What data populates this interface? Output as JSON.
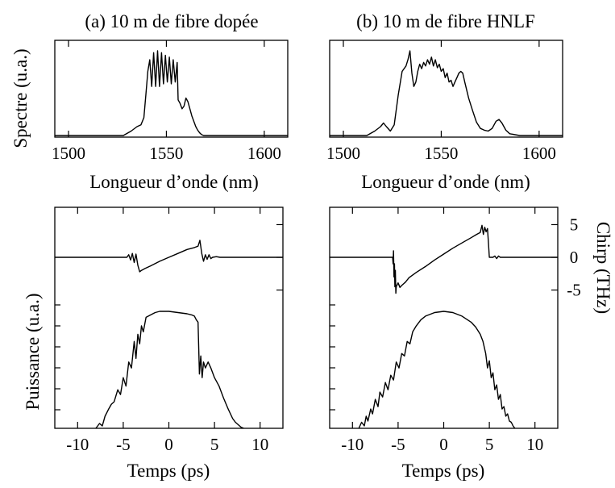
{
  "chart_data": [
    {
      "id": "spec_a",
      "type": "line",
      "title": "(a) 10 m de fibre dopée",
      "xlabel": "Longueur d’onde (nm)",
      "ylabel": "Spectre (u.a.)",
      "xlim": [
        1493,
        1612
      ],
      "ylim": [
        0,
        1.05
      ],
      "xticks": [
        1500,
        1550,
        1600
      ],
      "x": [
        1493,
        1528,
        1532,
        1535,
        1537,
        1538.5,
        1539.5,
        1540.5,
        1541.5,
        1542.5,
        1543.5,
        1544.5,
        1545.5,
        1546.5,
        1547.5,
        1548.5,
        1549.5,
        1550.5,
        1551.5,
        1552.5,
        1553.5,
        1554.5,
        1555.5,
        1556,
        1557,
        1558,
        1559,
        1560,
        1561,
        1562,
        1563,
        1564,
        1565,
        1566,
        1567,
        1568,
        1569,
        1612
      ],
      "y": [
        0,
        0,
        0.05,
        0.1,
        0.12,
        0.2,
        0.45,
        0.72,
        0.85,
        0.55,
        0.93,
        0.55,
        0.95,
        0.55,
        0.93,
        0.58,
        0.9,
        0.6,
        0.88,
        0.58,
        0.85,
        0.6,
        0.82,
        0.4,
        0.36,
        0.3,
        0.33,
        0.42,
        0.38,
        0.3,
        0.22,
        0.16,
        0.1,
        0.06,
        0.03,
        0.01,
        0,
        0
      ]
    },
    {
      "id": "spec_b",
      "type": "line",
      "title": "(b) 10 m de fibre HNLF",
      "xlabel": "Longueur d’onde (nm)",
      "ylabel": "",
      "xlim": [
        1493,
        1612
      ],
      "ylim": [
        0,
        1.05
      ],
      "xticks": [
        1500,
        1550,
        1600
      ],
      "x": [
        1493,
        1512,
        1516,
        1519,
        1520.5,
        1522,
        1524,
        1526,
        1528,
        1530,
        1532,
        1533,
        1534,
        1535,
        1536,
        1537,
        1538,
        1539,
        1540,
        1541,
        1542,
        1543,
        1544,
        1545,
        1546,
        1547,
        1548,
        1549,
        1550,
        1551,
        1552,
        1553,
        1554,
        1555,
        1556,
        1557,
        1558,
        1559,
        1560,
        1561,
        1562,
        1564,
        1566,
        1568,
        1570,
        1572,
        1574,
        1576,
        1578,
        1579.5,
        1581,
        1583,
        1585,
        1590,
        1612
      ],
      "y": [
        0,
        0,
        0.05,
        0.1,
        0.14,
        0.1,
        0.05,
        0.12,
        0.45,
        0.72,
        0.78,
        0.85,
        0.95,
        0.7,
        0.55,
        0.6,
        0.72,
        0.8,
        0.75,
        0.82,
        0.78,
        0.85,
        0.8,
        0.88,
        0.78,
        0.85,
        0.76,
        0.8,
        0.72,
        0.75,
        0.65,
        0.7,
        0.6,
        0.62,
        0.55,
        0.6,
        0.65,
        0.7,
        0.72,
        0.7,
        0.6,
        0.42,
        0.28,
        0.15,
        0.08,
        0.06,
        0.05,
        0.08,
        0.16,
        0.18,
        0.14,
        0.06,
        0.02,
        0,
        0
      ]
    },
    {
      "id": "time_a",
      "type": "line",
      "xlabel": "Temps (ps)",
      "ylabel": "Puissance (u.a.)",
      "xlim": [
        -12.5,
        12.5
      ],
      "xticks": [
        -10,
        -5,
        0,
        5,
        10
      ],
      "series": [
        {
          "role": "chirp",
          "ylim": [
            -10.6,
            7.4
          ],
          "x": [
            -12.5,
            -4.6,
            -4.4,
            -4.2,
            -4.0,
            -3.8,
            -3.6,
            -3.4,
            -3.2,
            -3.0,
            -2.6,
            -2.0,
            -1.0,
            0,
            1.0,
            2.0,
            2.8,
            3.2,
            3.4,
            3.6,
            3.8,
            4.0,
            4.2,
            4.4,
            4.6,
            4.8,
            5.2,
            5.6,
            12.5
          ],
          "y": [
            0,
            0,
            0.4,
            -0.4,
            0.6,
            -0.8,
            0.5,
            -1.2,
            -2.2,
            -2.0,
            -1.7,
            -1.3,
            -0.6,
            0.0,
            0.6,
            1.2,
            1.5,
            1.7,
            2.6,
            0.6,
            -0.6,
            0.4,
            -0.3,
            0.4,
            -0.2,
            0,
            0.1,
            0,
            0
          ]
        },
        {
          "role": "power",
          "ylim": [
            0,
            1.05
          ],
          "x": [
            -8.0,
            -7.6,
            -7.3,
            -7.0,
            -6.6,
            -6.3,
            -6.0,
            -5.6,
            -5.3,
            -5.0,
            -4.7,
            -4.4,
            -4.1,
            -3.8,
            -3.6,
            -3.4,
            -3.2,
            -3.0,
            -2.8,
            -2.5,
            -2.0,
            -1.5,
            -1.0,
            0,
            1.0,
            2.0,
            2.5,
            2.8,
            3.0,
            3.2,
            3.35,
            3.5,
            3.65,
            3.8,
            4.0,
            4.3,
            4.6,
            5.0,
            5.5,
            6.0,
            6.5,
            7.0,
            7.3,
            7.6,
            7.9,
            8.2
          ],
          "y": [
            0.0,
            0.04,
            0.02,
            0.1,
            0.16,
            0.2,
            0.22,
            0.32,
            0.28,
            0.42,
            0.35,
            0.55,
            0.5,
            0.72,
            0.58,
            0.78,
            0.7,
            0.85,
            0.8,
            0.92,
            0.94,
            0.96,
            0.97,
            0.97,
            0.96,
            0.95,
            0.94,
            0.93,
            0.9,
            0.88,
            0.45,
            0.6,
            0.42,
            0.55,
            0.5,
            0.55,
            0.5,
            0.42,
            0.35,
            0.25,
            0.16,
            0.08,
            0.05,
            0.03,
            0.01,
            0.0
          ]
        }
      ]
    },
    {
      "id": "time_b",
      "type": "line",
      "xlabel": "Temps (ps)",
      "ylabel": "Chirp (THz)",
      "xlim": [
        -12.5,
        12.5
      ],
      "xticks": [
        -10,
        -5,
        0,
        5,
        10
      ],
      "yticks": [
        5,
        0,
        -5
      ],
      "series": [
        {
          "role": "chirp",
          "ylim": [
            -10.6,
            7.4
          ],
          "x": [
            -12.5,
            -5.6,
            -5.55,
            -5.5,
            -5.45,
            -5.4,
            -5.35,
            -5.3,
            -5.25,
            -5.2,
            -5.0,
            -4.8,
            -4.6,
            -4.2,
            -3.8,
            -3.0,
            -2.0,
            -1.0,
            0.0,
            1.0,
            2.0,
            3.0,
            3.6,
            4.0,
            4.2,
            4.35,
            4.5,
            4.65,
            4.8,
            4.9,
            5.0,
            5.4,
            5.6,
            5.8,
            6.0,
            6.2,
            12.5
          ],
          "y": [
            0,
            0,
            -1.0,
            1.0,
            -3.0,
            -1.0,
            -4.5,
            -2.0,
            -5.5,
            -4.5,
            -3.9,
            -4.6,
            -4.3,
            -3.8,
            -3.1,
            -2.3,
            -1.4,
            -0.4,
            0.5,
            1.4,
            2.2,
            3.0,
            3.5,
            3.8,
            4.9,
            3.5,
            4.6,
            3.9,
            4.4,
            2.2,
            0.0,
            0.0,
            0.2,
            -0.2,
            0.2,
            0,
            0
          ]
        },
        {
          "role": "power",
          "ylim": [
            0,
            1.05
          ],
          "x": [
            -9.3,
            -9.0,
            -8.7,
            -8.5,
            -8.3,
            -8.0,
            -7.8,
            -7.5,
            -7.2,
            -7.0,
            -6.7,
            -6.4,
            -6.1,
            -5.8,
            -5.5,
            -5.2,
            -4.9,
            -4.6,
            -4.3,
            -4.0,
            -3.7,
            -3.4,
            -3.0,
            -2.5,
            -2.0,
            -1.0,
            0.0,
            1.0,
            2.0,
            3.0,
            3.5,
            4.0,
            4.3,
            4.6,
            4.8,
            5.0,
            5.2,
            5.4,
            5.6,
            5.8,
            6.0,
            6.2,
            6.4,
            6.6,
            6.8,
            7.0,
            7.2,
            7.4,
            7.6,
            7.8
          ],
          "y": [
            0.0,
            0.05,
            0.02,
            0.1,
            0.06,
            0.16,
            0.12,
            0.24,
            0.18,
            0.3,
            0.26,
            0.38,
            0.32,
            0.44,
            0.4,
            0.55,
            0.5,
            0.62,
            0.6,
            0.72,
            0.7,
            0.8,
            0.85,
            0.9,
            0.93,
            0.96,
            0.97,
            0.96,
            0.93,
            0.88,
            0.84,
            0.78,
            0.72,
            0.62,
            0.5,
            0.56,
            0.42,
            0.46,
            0.32,
            0.36,
            0.24,
            0.28,
            0.16,
            0.18,
            0.1,
            0.12,
            0.06,
            0.05,
            0.02,
            0.0
          ]
        }
      ]
    }
  ]
}
